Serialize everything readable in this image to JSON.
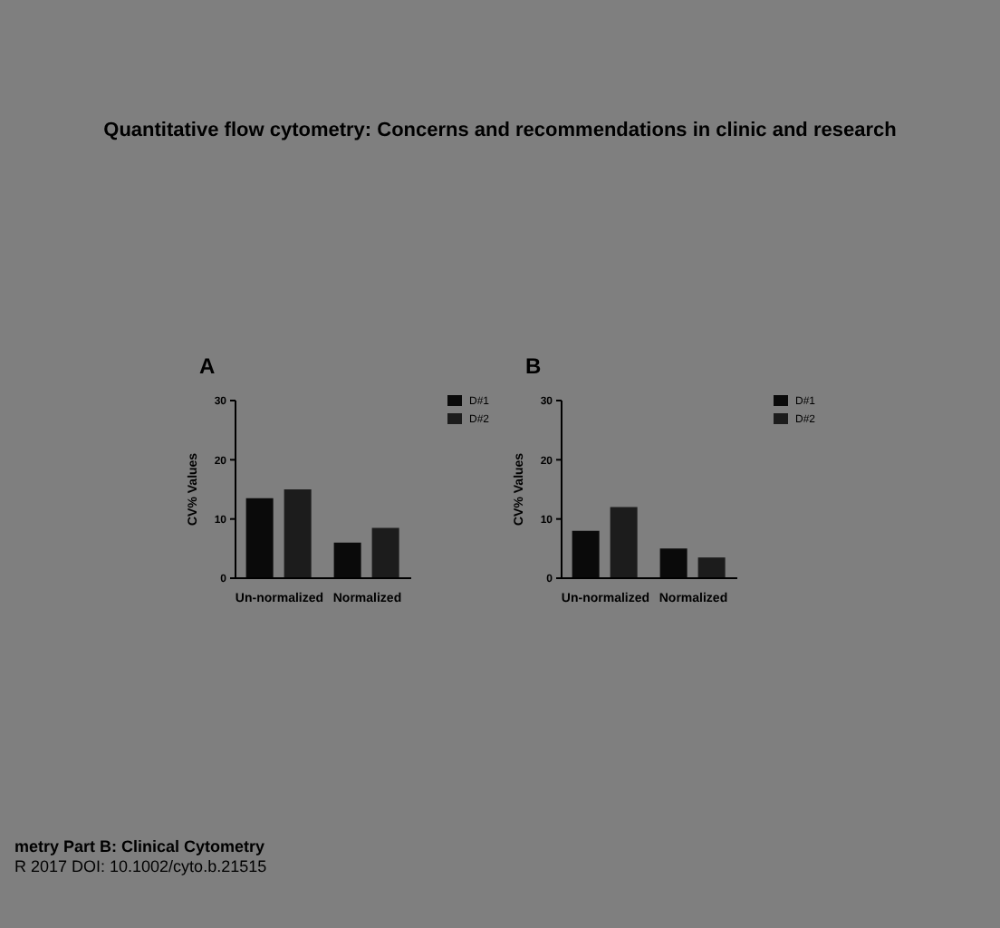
{
  "chart_data": [
    {
      "type": "bar",
      "title": "Quantitative flow cytometry: Concerns and recommendations in clinic and research",
      "subtitle": "A",
      "ylabel": "CV% Values",
      "categories": [
        "Un-normalized",
        "Normalized"
      ],
      "series": [
        {
          "name": "D#1",
          "color": "#0a0a0a",
          "values": [
            13.5,
            6
          ]
        },
        {
          "name": "D#2",
          "color": "#1c1c1c",
          "values": [
            15,
            8.5
          ]
        }
      ],
      "ylim": [
        0,
        30
      ],
      "yticks": [
        0,
        10,
        20,
        30
      ],
      "grid": false,
      "legend": "top right",
      "annotations": [
        "metry Part B: Clinical Cytometry",
        "R 2017 DOI: 10.1002/cyto.b.21515"
      ]
    },
    {
      "type": "bar",
      "subtitle": "B",
      "ylabel": "CV% Values",
      "categories": [
        "Un-normalized",
        "Normalized"
      ],
      "series": [
        {
          "name": "D#1",
          "color": "#0a0a0a",
          "values": [
            8,
            5
          ]
        },
        {
          "name": "D#2",
          "color": "#1c1c1c",
          "values": [
            12,
            3.5
          ]
        }
      ],
      "ylim": [
        0,
        30
      ],
      "yticks": [
        0,
        10,
        20,
        30
      ],
      "grid": false,
      "legend": "top right"
    }
  ]
}
